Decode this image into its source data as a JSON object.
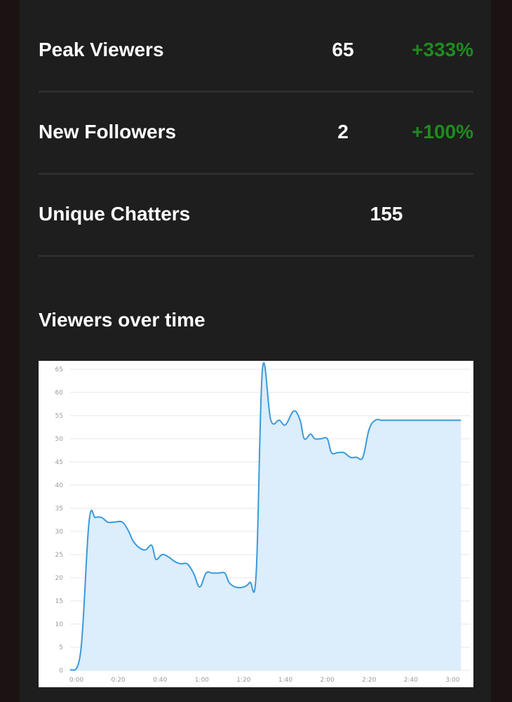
{
  "stats": [
    {
      "label": "Peak Viewers",
      "value": "65",
      "change": "+333%"
    },
    {
      "label": "New Followers",
      "value": "2",
      "change": "+100%"
    },
    {
      "label": "Unique Chatters",
      "value": "155",
      "change": ""
    }
  ],
  "colors": {
    "positive": "#1e8c1e",
    "line": "#3a9ad9",
    "fill": "#dcedfb",
    "grid": "#e6e6e6"
  },
  "section_title": "Viewers over time",
  "chart_data": {
    "type": "area",
    "title": "",
    "xlabel": "",
    "ylabel": "",
    "ylim": [
      0,
      65
    ],
    "xlim_minutes": [
      0,
      185
    ],
    "y_ticks": [
      0,
      5,
      10,
      15,
      20,
      25,
      30,
      35,
      40,
      45,
      50,
      55,
      60,
      65
    ],
    "x_ticks": [
      "0:00",
      "0:20",
      "0:40",
      "1:00",
      "1:20",
      "1:40",
      "2:00",
      "2:20",
      "2:40",
      "3:00"
    ],
    "x_tick_minutes": [
      0,
      20,
      40,
      60,
      80,
      100,
      120,
      140,
      160,
      180
    ],
    "grid": true,
    "series": [
      {
        "x_minutes": [
          -3,
          2,
          6,
          9,
          12,
          15,
          18,
          22,
          25,
          27,
          30,
          33,
          36,
          38,
          41,
          44,
          47,
          50,
          53,
          56,
          59,
          62,
          65,
          68,
          71,
          73,
          76,
          80,
          83,
          86,
          89,
          93,
          97,
          100,
          104,
          107,
          109,
          112,
          114,
          117,
          120,
          122,
          125,
          128,
          131,
          134,
          137,
          140,
          143,
          146,
          149,
          152,
          155,
          158,
          161,
          164,
          167,
          170,
          173,
          176,
          178,
          181,
          184
        ],
        "values": [
          0,
          4,
          32,
          33,
          33,
          32,
          32,
          32,
          30,
          28,
          26.5,
          26,
          27,
          24,
          25,
          24.5,
          23.5,
          23,
          23,
          21,
          18,
          21,
          21,
          21,
          21,
          19,
          18,
          18,
          19,
          21,
          65,
          54,
          54,
          53,
          56,
          54,
          50,
          51,
          50,
          50,
          50,
          47,
          47,
          47,
          46,
          46,
          46,
          52,
          54,
          54,
          54,
          54,
          54,
          54,
          54,
          54,
          54,
          54,
          54,
          54,
          54,
          54,
          54
        ]
      }
    ]
  }
}
